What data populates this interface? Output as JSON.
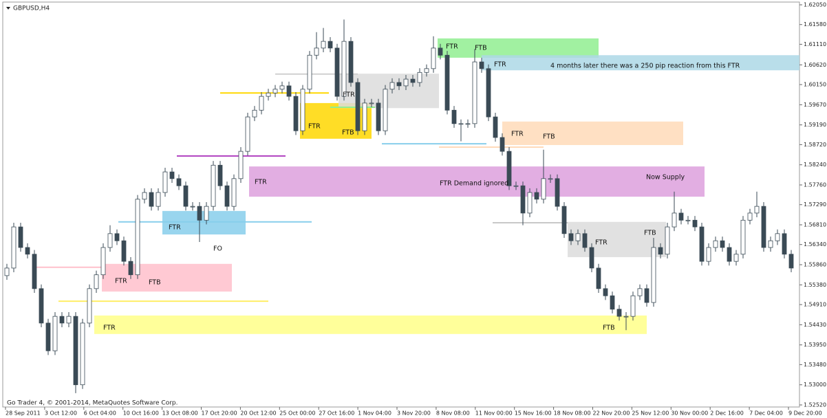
{
  "chart_data": {
    "type": "candlestick",
    "title": "GBPUSD,H4",
    "footer": "Go Trader 4, © 2001-2014, MetaQuotes Software Corp.",
    "ylim": [
      1.5252,
      1.6205
    ],
    "yticks": [
      {
        "value": 1.6205,
        "label": "1.62050"
      },
      {
        "value": 1.6158,
        "label": "1.61580"
      },
      {
        "value": 1.6111,
        "label": "1.61110"
      },
      {
        "value": 1.6062,
        "label": "1.60620"
      },
      {
        "value": 1.6015,
        "label": "1.60150"
      },
      {
        "value": 1.5967,
        "label": "1.59670"
      },
      {
        "value": 1.5919,
        "label": "1.59190"
      },
      {
        "value": 1.5872,
        "label": "1.58720"
      },
      {
        "value": 1.5824,
        "label": "1.58240"
      },
      {
        "value": 1.5776,
        "label": "1.57760"
      },
      {
        "value": 1.5729,
        "label": "1.57290"
      },
      {
        "value": 1.5681,
        "label": "1.56810"
      },
      {
        "value": 1.5634,
        "label": "1.56340"
      },
      {
        "value": 1.5586,
        "label": "1.55860"
      },
      {
        "value": 1.5538,
        "label": "1.55380"
      },
      {
        "value": 1.5491,
        "label": "1.54910"
      },
      {
        "value": 1.5443,
        "label": "1.54430"
      },
      {
        "value": 1.5395,
        "label": "1.53950"
      },
      {
        "value": 1.5348,
        "label": "1.53480"
      },
      {
        "value": 1.53,
        "label": "1.53000"
      },
      {
        "value": 1.5252,
        "label": "1.52520"
      }
    ],
    "x_labels": [
      "28 Sep 2011",
      "3 Oct 12:00",
      "6 Oct 04:00",
      "10 Oct 16:00",
      "13 Oct 08:00",
      "17 Oct 20:00",
      "20 Oct 12:00",
      "25 Oct 00:00",
      "27 Oct 16:00",
      "1 Nov 04:00",
      "3 Nov 20:00",
      "8 Nov 08:00",
      "11 Nov 00:00",
      "15 Nov 16:00",
      "18 Nov 08:00",
      "22 Nov 20:00",
      "25 Nov 12:00",
      "30 Nov 00:00",
      "2 Dec 16:00",
      "7 Dec 04:00",
      "9 Dec 20:00"
    ],
    "open": [
      1.556,
      1.5578,
      1.5676,
      1.5627,
      1.5611,
      1.5529,
      1.5447,
      1.5381,
      1.5463,
      1.5447,
      1.5463,
      1.53,
      1.5447,
      1.5529,
      1.5562,
      1.5627,
      1.566,
      1.5643,
      1.5594,
      1.5562,
      1.5742,
      1.5758,
      1.5725,
      1.5758,
      1.5807,
      1.5791,
      1.5774,
      1.5725,
      1.5725,
      1.5692,
      1.5725,
      1.5823,
      1.5774,
      1.5725,
      1.5791,
      1.5856,
      1.5938,
      1.5954,
      1.5987,
      1.5995,
      1.6004,
      1.6012,
      1.5987,
      1.5905,
      1.6004,
      1.6085,
      1.6102,
      1.6118,
      1.6102,
      1.5987,
      1.6118,
      1.602,
      1.5905,
      1.5971,
      1.5971,
      1.5905,
      1.6004,
      1.602,
      1.6012,
      1.6028,
      1.602,
      1.6044,
      1.6053,
      1.6102,
      1.6085,
      1.5954,
      1.5922,
      1.5922,
      1.5922,
      1.6069,
      1.6053,
      1.5938,
      1.5889,
      1.5856,
      1.5774,
      1.5774,
      1.5709,
      1.5758,
      1.5742,
      1.5791,
      1.5791,
      1.5725,
      1.566,
      1.5643,
      1.566,
      1.5627,
      1.5578,
      1.5529,
      1.5512,
      1.548,
      1.5463,
      1.5463,
      1.5512,
      1.5529,
      1.5496,
      1.5627,
      1.5611,
      1.5676,
      1.5709,
      1.5692,
      1.5692,
      1.5676,
      1.5594,
      1.5627,
      1.5643,
      1.5627,
      1.5594,
      1.5611,
      1.5692,
      1.5709,
      1.5725,
      1.5627,
      1.5643,
      1.566,
      1.5611
    ],
    "high": [
      1.5588,
      1.5686,
      1.5686,
      1.5637,
      1.5621,
      1.5539,
      1.5457,
      1.5473,
      1.5473,
      1.5473,
      1.5473,
      1.5457,
      1.5539,
      1.5572,
      1.5637,
      1.568,
      1.567,
      1.5653,
      1.5604,
      1.5752,
      1.5768,
      1.5768,
      1.5768,
      1.5817,
      1.5817,
      1.5801,
      1.5784,
      1.5735,
      1.5735,
      1.5735,
      1.5833,
      1.5833,
      1.5784,
      1.5801,
      1.5866,
      1.5948,
      1.5964,
      1.5997,
      1.6005,
      1.6014,
      1.6022,
      1.6022,
      1.5997,
      1.6014,
      1.6095,
      1.614,
      1.615,
      1.6128,
      1.6112,
      1.617,
      1.6128,
      1.603,
      1.5981,
      1.5981,
      1.5981,
      1.6014,
      1.603,
      1.603,
      1.6038,
      1.6038,
      1.6054,
      1.6063,
      1.613,
      1.6112,
      1.6095,
      1.5964,
      1.5932,
      1.5932,
      1.61,
      1.6079,
      1.6063,
      1.5948,
      1.5899,
      1.5866,
      1.5784,
      1.5784,
      1.5768,
      1.5768,
      1.586,
      1.5801,
      1.5801,
      1.5735,
      1.567,
      1.567,
      1.567,
      1.5637,
      1.5588,
      1.5539,
      1.5522,
      1.549,
      1.5473,
      1.5522,
      1.5539,
      1.5539,
      1.565,
      1.5637,
      1.5686,
      1.576,
      1.5719,
      1.5702,
      1.5702,
      1.5686,
      1.5637,
      1.5653,
      1.5653,
      1.5637,
      1.5621,
      1.5702,
      1.5719,
      1.576,
      1.5735,
      1.5653,
      1.567,
      1.567,
      1.5621
    ],
    "low": [
      1.555,
      1.5568,
      1.5617,
      1.5601,
      1.5519,
      1.5437,
      1.5371,
      1.5371,
      1.5437,
      1.5437,
      1.528,
      1.529,
      1.5437,
      1.5519,
      1.5552,
      1.5617,
      1.5633,
      1.5584,
      1.5552,
      1.5552,
      1.5732,
      1.5715,
      1.5715,
      1.5748,
      1.5781,
      1.5764,
      1.5715,
      1.5715,
      1.564,
      1.5682,
      1.5715,
      1.5764,
      1.5715,
      1.5715,
      1.5781,
      1.5846,
      1.5928,
      1.5944,
      1.5977,
      1.5985,
      1.5994,
      1.5977,
      1.5895,
      1.5895,
      1.5994,
      1.6075,
      1.6092,
      1.6092,
      1.5977,
      1.5977,
      1.601,
      1.5895,
      1.5895,
      1.5961,
      1.5895,
      1.5895,
      1.5994,
      1.6002,
      1.6002,
      1.601,
      1.601,
      1.6034,
      1.6043,
      1.6075,
      1.5944,
      1.5912,
      1.588,
      1.5912,
      1.5912,
      1.6043,
      1.5928,
      1.5879,
      1.5846,
      1.5764,
      1.5764,
      1.568,
      1.5699,
      1.5732,
      1.5732,
      1.5781,
      1.5715,
      1.565,
      1.5633,
      1.5633,
      1.5617,
      1.5568,
      1.5519,
      1.5502,
      1.547,
      1.5453,
      1.543,
      1.5453,
      1.5502,
      1.5486,
      1.5486,
      1.5601,
      1.5601,
      1.5666,
      1.5682,
      1.5682,
      1.5666,
      1.5584,
      1.5584,
      1.5617,
      1.5617,
      1.5584,
      1.5584,
      1.5601,
      1.5682,
      1.5699,
      1.5617,
      1.5617,
      1.5633,
      1.5601,
      1.5568
    ],
    "close": [
      1.5578,
      1.5676,
      1.5627,
      1.5611,
      1.5529,
      1.5447,
      1.5381,
      1.5463,
      1.5447,
      1.5463,
      1.53,
      1.5447,
      1.5529,
      1.5562,
      1.5627,
      1.566,
      1.5643,
      1.5594,
      1.5562,
      1.5742,
      1.5758,
      1.5725,
      1.5758,
      1.5807,
      1.5791,
      1.5774,
      1.5725,
      1.5725,
      1.5692,
      1.5725,
      1.5823,
      1.5774,
      1.5725,
      1.5791,
      1.5856,
      1.5938,
      1.5954,
      1.5987,
      1.5995,
      1.6004,
      1.6012,
      1.5987,
      1.5905,
      1.6004,
      1.6085,
      1.6102,
      1.6118,
      1.6102,
      1.5987,
      1.6118,
      1.602,
      1.5905,
      1.5971,
      1.5971,
      1.5905,
      1.6004,
      1.602,
      1.6012,
      1.6028,
      1.602,
      1.6044,
      1.6053,
      1.6102,
      1.6085,
      1.5954,
      1.5922,
      1.5922,
      1.5922,
      1.6069,
      1.6053,
      1.5938,
      1.5889,
      1.5856,
      1.5774,
      1.5774,
      1.5709,
      1.5758,
      1.5742,
      1.5791,
      1.5791,
      1.5725,
      1.566,
      1.5643,
      1.566,
      1.5627,
      1.5578,
      1.5529,
      1.5512,
      1.548,
      1.5463,
      1.5463,
      1.5512,
      1.5529,
      1.5496,
      1.5627,
      1.5611,
      1.5676,
      1.5709,
      1.5692,
      1.5692,
      1.5676,
      1.5594,
      1.5627,
      1.5643,
      1.5627,
      1.5594,
      1.5611,
      1.5692,
      1.5709,
      1.5725,
      1.5627,
      1.5643,
      1.566,
      1.5611,
      1.5578
    ],
    "zones": [
      {
        "color": "#ffc0cb",
        "range": [
          1.5522,
          1.5588
        ],
        "labels": [
          "FTR",
          "FTB"
        ]
      },
      {
        "color": "#ffff88",
        "range": [
          1.5421,
          1.5465
        ],
        "labels": [
          "FTR",
          "FTB"
        ]
      },
      {
        "color": "#87ceeb",
        "range": [
          1.5658,
          1.5714
        ],
        "labels": [
          "FTR"
        ]
      },
      {
        "color": "#dda0dd",
        "range": [
          1.5748,
          1.582
        ],
        "labels": [
          "FTR",
          "FTR Demand ignored",
          "Now Supply"
        ]
      },
      {
        "color": "#ffd700",
        "range": [
          1.5886,
          1.5971
        ],
        "labels": [
          "FTR",
          "FTB"
        ]
      },
      {
        "color": "#dcdcdc",
        "range": [
          1.5959,
          1.6041
        ],
        "labels": [
          "FTR"
        ]
      },
      {
        "color": "#90ee90",
        "range": [
          1.6079,
          1.6125
        ],
        "labels": [
          "FTR",
          "FTB"
        ]
      },
      {
        "color": "#add8e6",
        "range": [
          1.6049,
          1.6085
        ],
        "labels": [
          "FTR",
          "4 months later there was a 250 pip reaction from this FTR"
        ]
      },
      {
        "color": "#ffdab9",
        "range": [
          1.5871,
          1.5927
        ],
        "labels": [
          "FTR",
          "FTB"
        ]
      },
      {
        "color": "#dcdcdc",
        "range": [
          1.5604,
          1.5688
        ],
        "labels": [
          "FTR",
          "FTB"
        ]
      }
    ],
    "levels": [
      {
        "value": 1.558,
        "color": "#ffc0cb"
      },
      {
        "value": 1.5499,
        "color": "#ffee66"
      },
      {
        "value": 1.5688,
        "color": "#87ceeb"
      },
      {
        "value": 1.5845,
        "color": "#b040c0"
      },
      {
        "value": 1.5995,
        "color": "#ffd700"
      },
      {
        "value": 1.604,
        "color": "#d0d0d0"
      },
      {
        "value": 1.5961,
        "color": "#90ee90"
      },
      {
        "value": 1.5874,
        "color": "#87ceeb"
      },
      {
        "value": 1.5866,
        "color": "#ffdab9"
      },
      {
        "value": 1.5686,
        "color": "#c8c8c8"
      }
    ],
    "annotations": [
      "FO"
    ],
    "bull_color": "#ffffff",
    "bear_color": "#3a4a55",
    "outline_color": "#3a4a55"
  }
}
